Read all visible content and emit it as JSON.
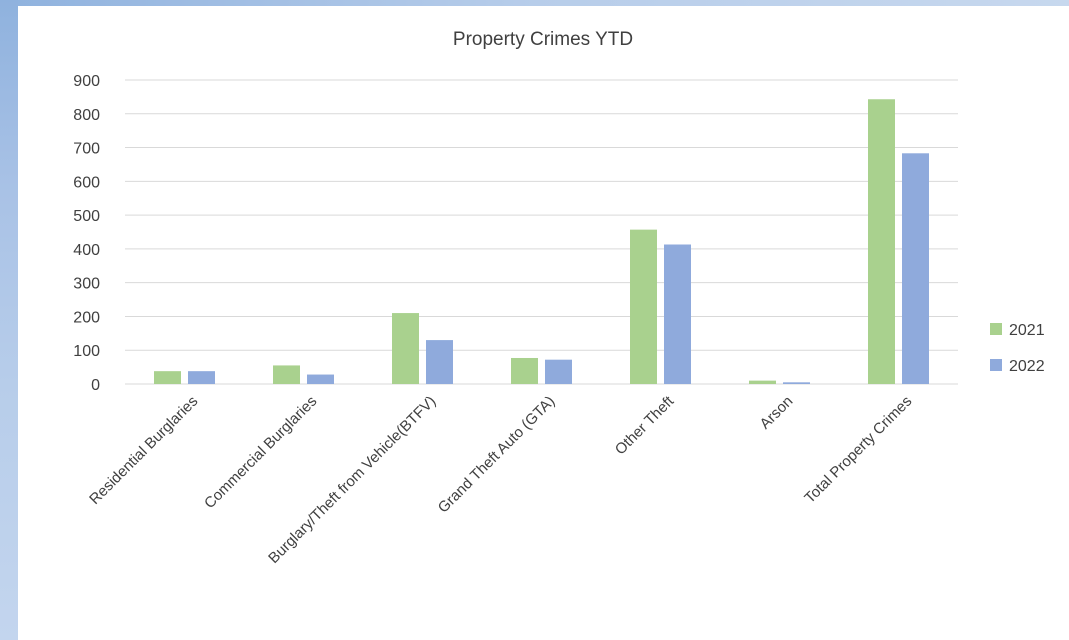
{
  "chart_data": {
    "type": "bar",
    "title": "Property Crimes YTD",
    "xlabel": "",
    "ylabel": "",
    "ylim": [
      0,
      900
    ],
    "yticks": [
      0,
      100,
      200,
      300,
      400,
      500,
      600,
      700,
      800,
      900
    ],
    "grid": true,
    "legend_position": "right",
    "categories": [
      "Residential Burglaries",
      "Commercial Burglaries",
      "Burglary/Theft from Vehicle(BTFV)",
      "Grand Theft Auto (GTA)",
      "Other Theft",
      "Arson",
      "Total Property Crimes"
    ],
    "series": [
      {
        "name": "2021",
        "color": "#a9d18e",
        "values": [
          38,
          55,
          210,
          77,
          457,
          10,
          843
        ]
      },
      {
        "name": "2022",
        "color": "#8faadc",
        "values": [
          38,
          28,
          130,
          72,
          413,
          5,
          683
        ]
      }
    ]
  }
}
